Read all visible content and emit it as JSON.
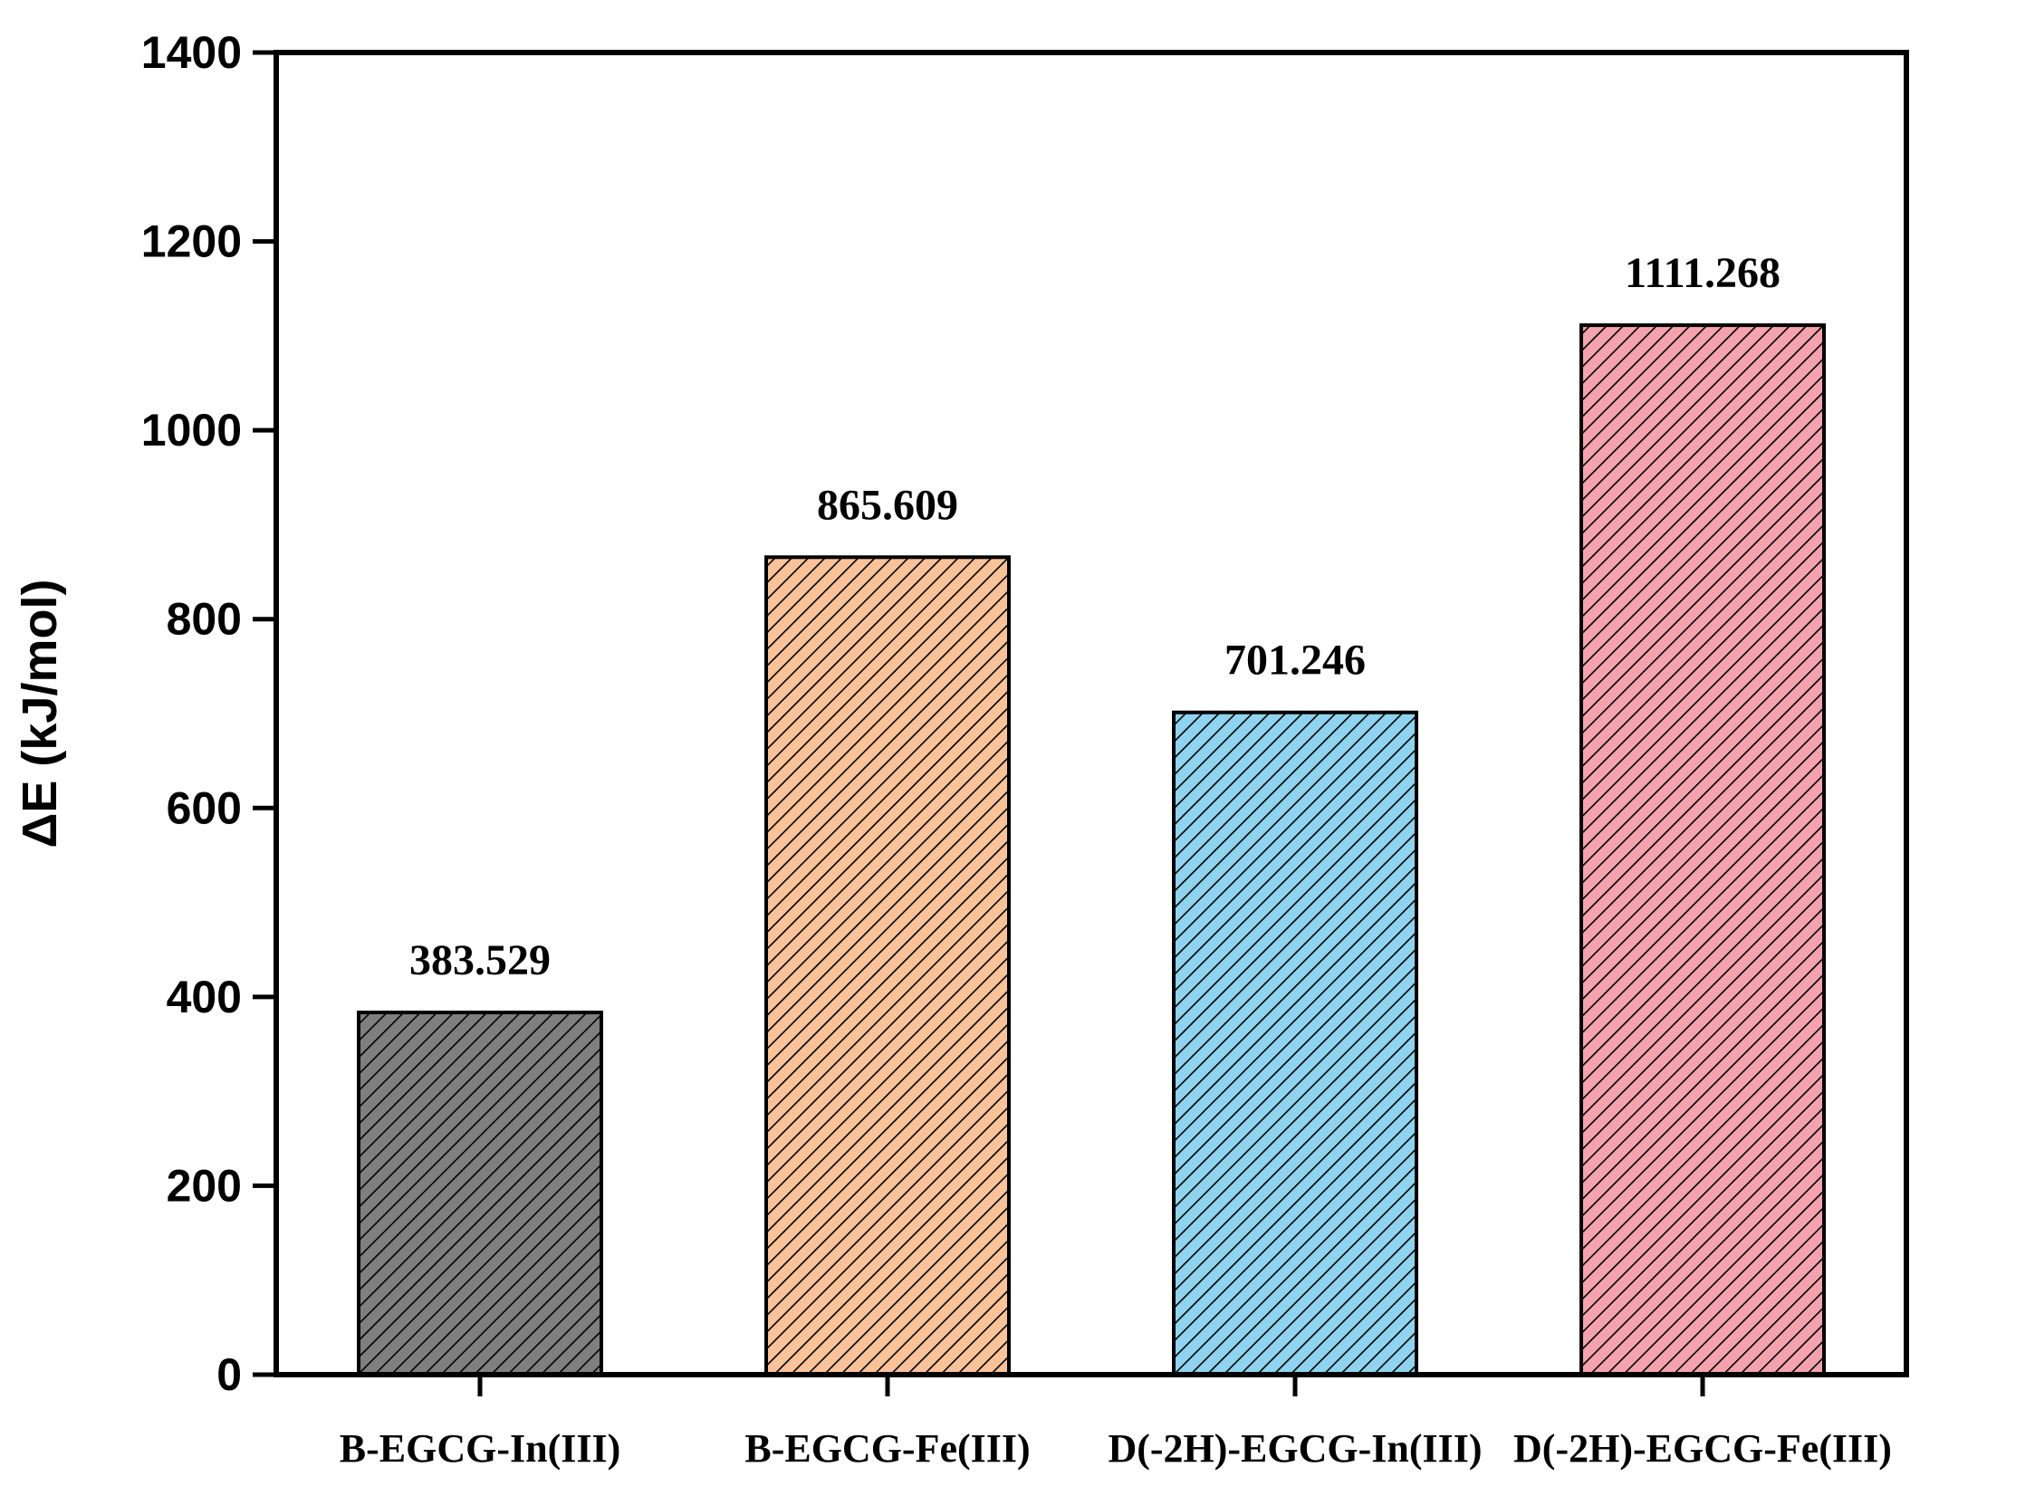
{
  "chart_data": {
    "type": "bar",
    "title": "",
    "xlabel": "",
    "ylabel": "ΔE (kJ/mol)",
    "ylim": [
      0,
      1400
    ],
    "yticks": [
      0,
      200,
      400,
      600,
      800,
      1000,
      1200,
      1400
    ],
    "grid": false,
    "legend": "none",
    "categories": [
      "B-EGCG-In(III)",
      "B-EGCG-Fe(III)",
      "D(-2H)-EGCG-In(III)",
      "D(-2H)-EGCG-Fe(III)"
    ],
    "values": [
      383.529,
      865.609,
      701.246,
      1111.268
    ],
    "data_labels": [
      "383.529",
      "865.609",
      "701.246",
      "1111.268"
    ],
    "colors": [
      "#7f7f7f",
      "#f9c299",
      "#8fd3ee",
      "#f4a3ae"
    ],
    "pattern": "diagonal-hatch"
  }
}
